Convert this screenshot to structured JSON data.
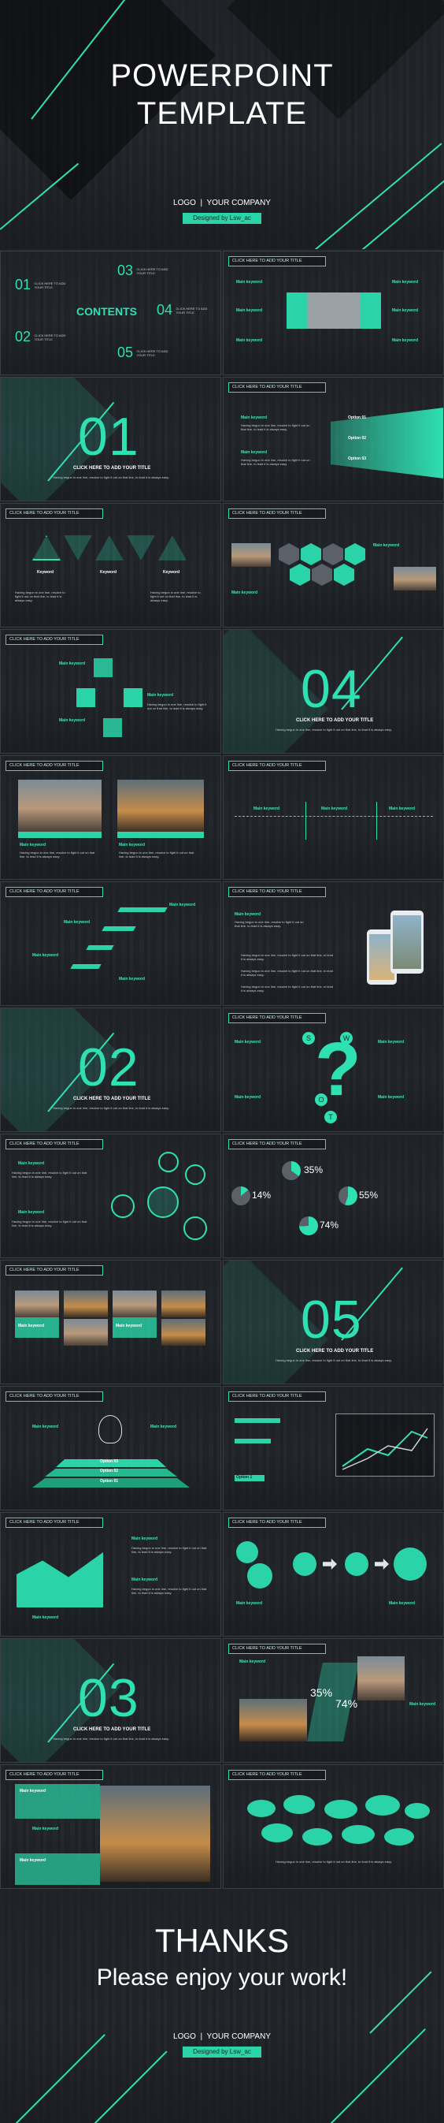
{
  "cover": {
    "title_line1": "POWERPOINT",
    "title_line2": "TEMPLATE",
    "logo": "LOGO",
    "separator": "|",
    "company": "YOUR COMPANY",
    "designed_by": "Designed by Lsw_ac"
  },
  "common": {
    "click_header": "CLICK HERE TO ADD YOUR TITLE",
    "main_keyword": "Main keyword",
    "keyword": "Keyword",
    "lorem": "Having begun in one line, resolve to fight it out on that line, to lead it is always easy.",
    "section_sub": "CLICK HERE TO ADD YOUR TITLE"
  },
  "contents": {
    "title": "CONTENTS",
    "items": [
      {
        "num": "01",
        "text": "CLICK HERE TO ADD YOUR TITLE"
      },
      {
        "num": "02",
        "text": "CLICK HERE TO ADD YOUR TITLE"
      },
      {
        "num": "03",
        "text": "CLICK HERE TO ADD YOUR TITLE"
      },
      {
        "num": "04",
        "text": "CLICK HERE TO ADD YOUR TITLE"
      },
      {
        "num": "05",
        "text": "CLICK HERE TO ADD YOUR TITLE"
      }
    ]
  },
  "sections": {
    "s01": "01",
    "s02": "02",
    "s03": "03",
    "s04": "04",
    "s05": "05"
  },
  "options": {
    "o1": "Option 01",
    "o2": "Option 02",
    "o3": "Option 03",
    "o1b": "Option 1"
  },
  "swot": {
    "s": "S",
    "w": "W",
    "o": "O",
    "t": "T"
  },
  "percents": {
    "p35": "35%",
    "p14": "14%",
    "p55": "55%",
    "p74": "74%"
  },
  "thanks": {
    "title": "THANKS",
    "subtitle": "Please enjoy your work!",
    "logo": "LOGO",
    "separator": "|",
    "company": "YOUR COMPANY",
    "designed_by": "Designed by Lsw_ac"
  },
  "colors": {
    "accent": "#2fe0b2",
    "dark": "#1f2227"
  }
}
